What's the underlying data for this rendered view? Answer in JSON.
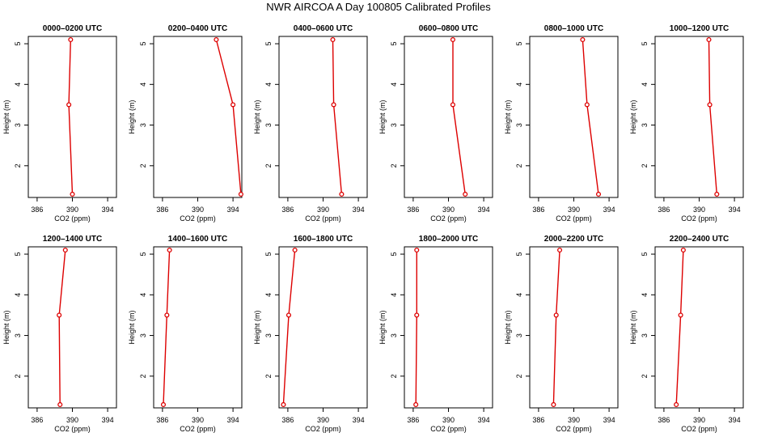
{
  "figure": {
    "title": "NWR AIRCOA A  Day 100805  Calibrated Profiles"
  },
  "style": {
    "line_color": "#dd0000",
    "axis_color": "#000000"
  },
  "axes_common": {
    "xlabel": "CO2 (ppm)",
    "ylabel": "Height (m)",
    "xlim": [
      385,
      395
    ],
    "ylim": [
      1.22,
      5.18
    ],
    "xticks": [
      386,
      390,
      394
    ],
    "yticks": [
      2,
      3,
      4,
      5
    ]
  },
  "chart_data": [
    {
      "type": "line",
      "title": "0000–0200 UTC",
      "x": [
        390.0,
        389.6,
        389.8
      ],
      "y": [
        1.3,
        3.5,
        5.1
      ]
    },
    {
      "type": "line",
      "title": "0200–0400 UTC",
      "x": [
        394.9,
        394.0,
        392.1
      ],
      "y": [
        1.3,
        3.5,
        5.1
      ]
    },
    {
      "type": "line",
      "title": "0400–0600 UTC",
      "x": [
        392.1,
        391.2,
        391.1
      ],
      "y": [
        1.3,
        3.5,
        5.1
      ]
    },
    {
      "type": "line",
      "title": "0600–0800 UTC",
      "x": [
        391.9,
        390.5,
        390.5
      ],
      "y": [
        1.3,
        3.5,
        5.1
      ]
    },
    {
      "type": "line",
      "title": "0800–1000 UTC",
      "x": [
        392.8,
        391.5,
        391.0
      ],
      "y": [
        1.3,
        3.5,
        5.1
      ]
    },
    {
      "type": "line",
      "title": "1000–1200 UTC",
      "x": [
        392.0,
        391.2,
        391.1
      ],
      "y": [
        1.3,
        3.5,
        5.1
      ]
    },
    {
      "type": "line",
      "title": "1200–1400 UTC",
      "x": [
        388.6,
        388.5,
        389.2
      ],
      "y": [
        1.3,
        3.5,
        5.1
      ]
    },
    {
      "type": "line",
      "title": "1400–1600 UTC",
      "x": [
        386.1,
        386.5,
        386.8
      ],
      "y": [
        1.3,
        3.5,
        5.1
      ]
    },
    {
      "type": "line",
      "title": "1600–1800 UTC",
      "x": [
        385.5,
        386.1,
        386.8
      ],
      "y": [
        1.3,
        3.5,
        5.1
      ]
    },
    {
      "type": "line",
      "title": "1800–2000 UTC",
      "x": [
        386.3,
        386.4,
        386.4
      ],
      "y": [
        1.3,
        3.5,
        5.1
      ]
    },
    {
      "type": "line",
      "title": "2000–2200 UTC",
      "x": [
        387.7,
        388.0,
        388.4
      ],
      "y": [
        1.3,
        3.5,
        5.1
      ]
    },
    {
      "type": "line",
      "title": "2200–2400 UTC",
      "x": [
        387.4,
        387.9,
        388.2
      ],
      "y": [
        1.3,
        3.5,
        5.1
      ]
    }
  ]
}
